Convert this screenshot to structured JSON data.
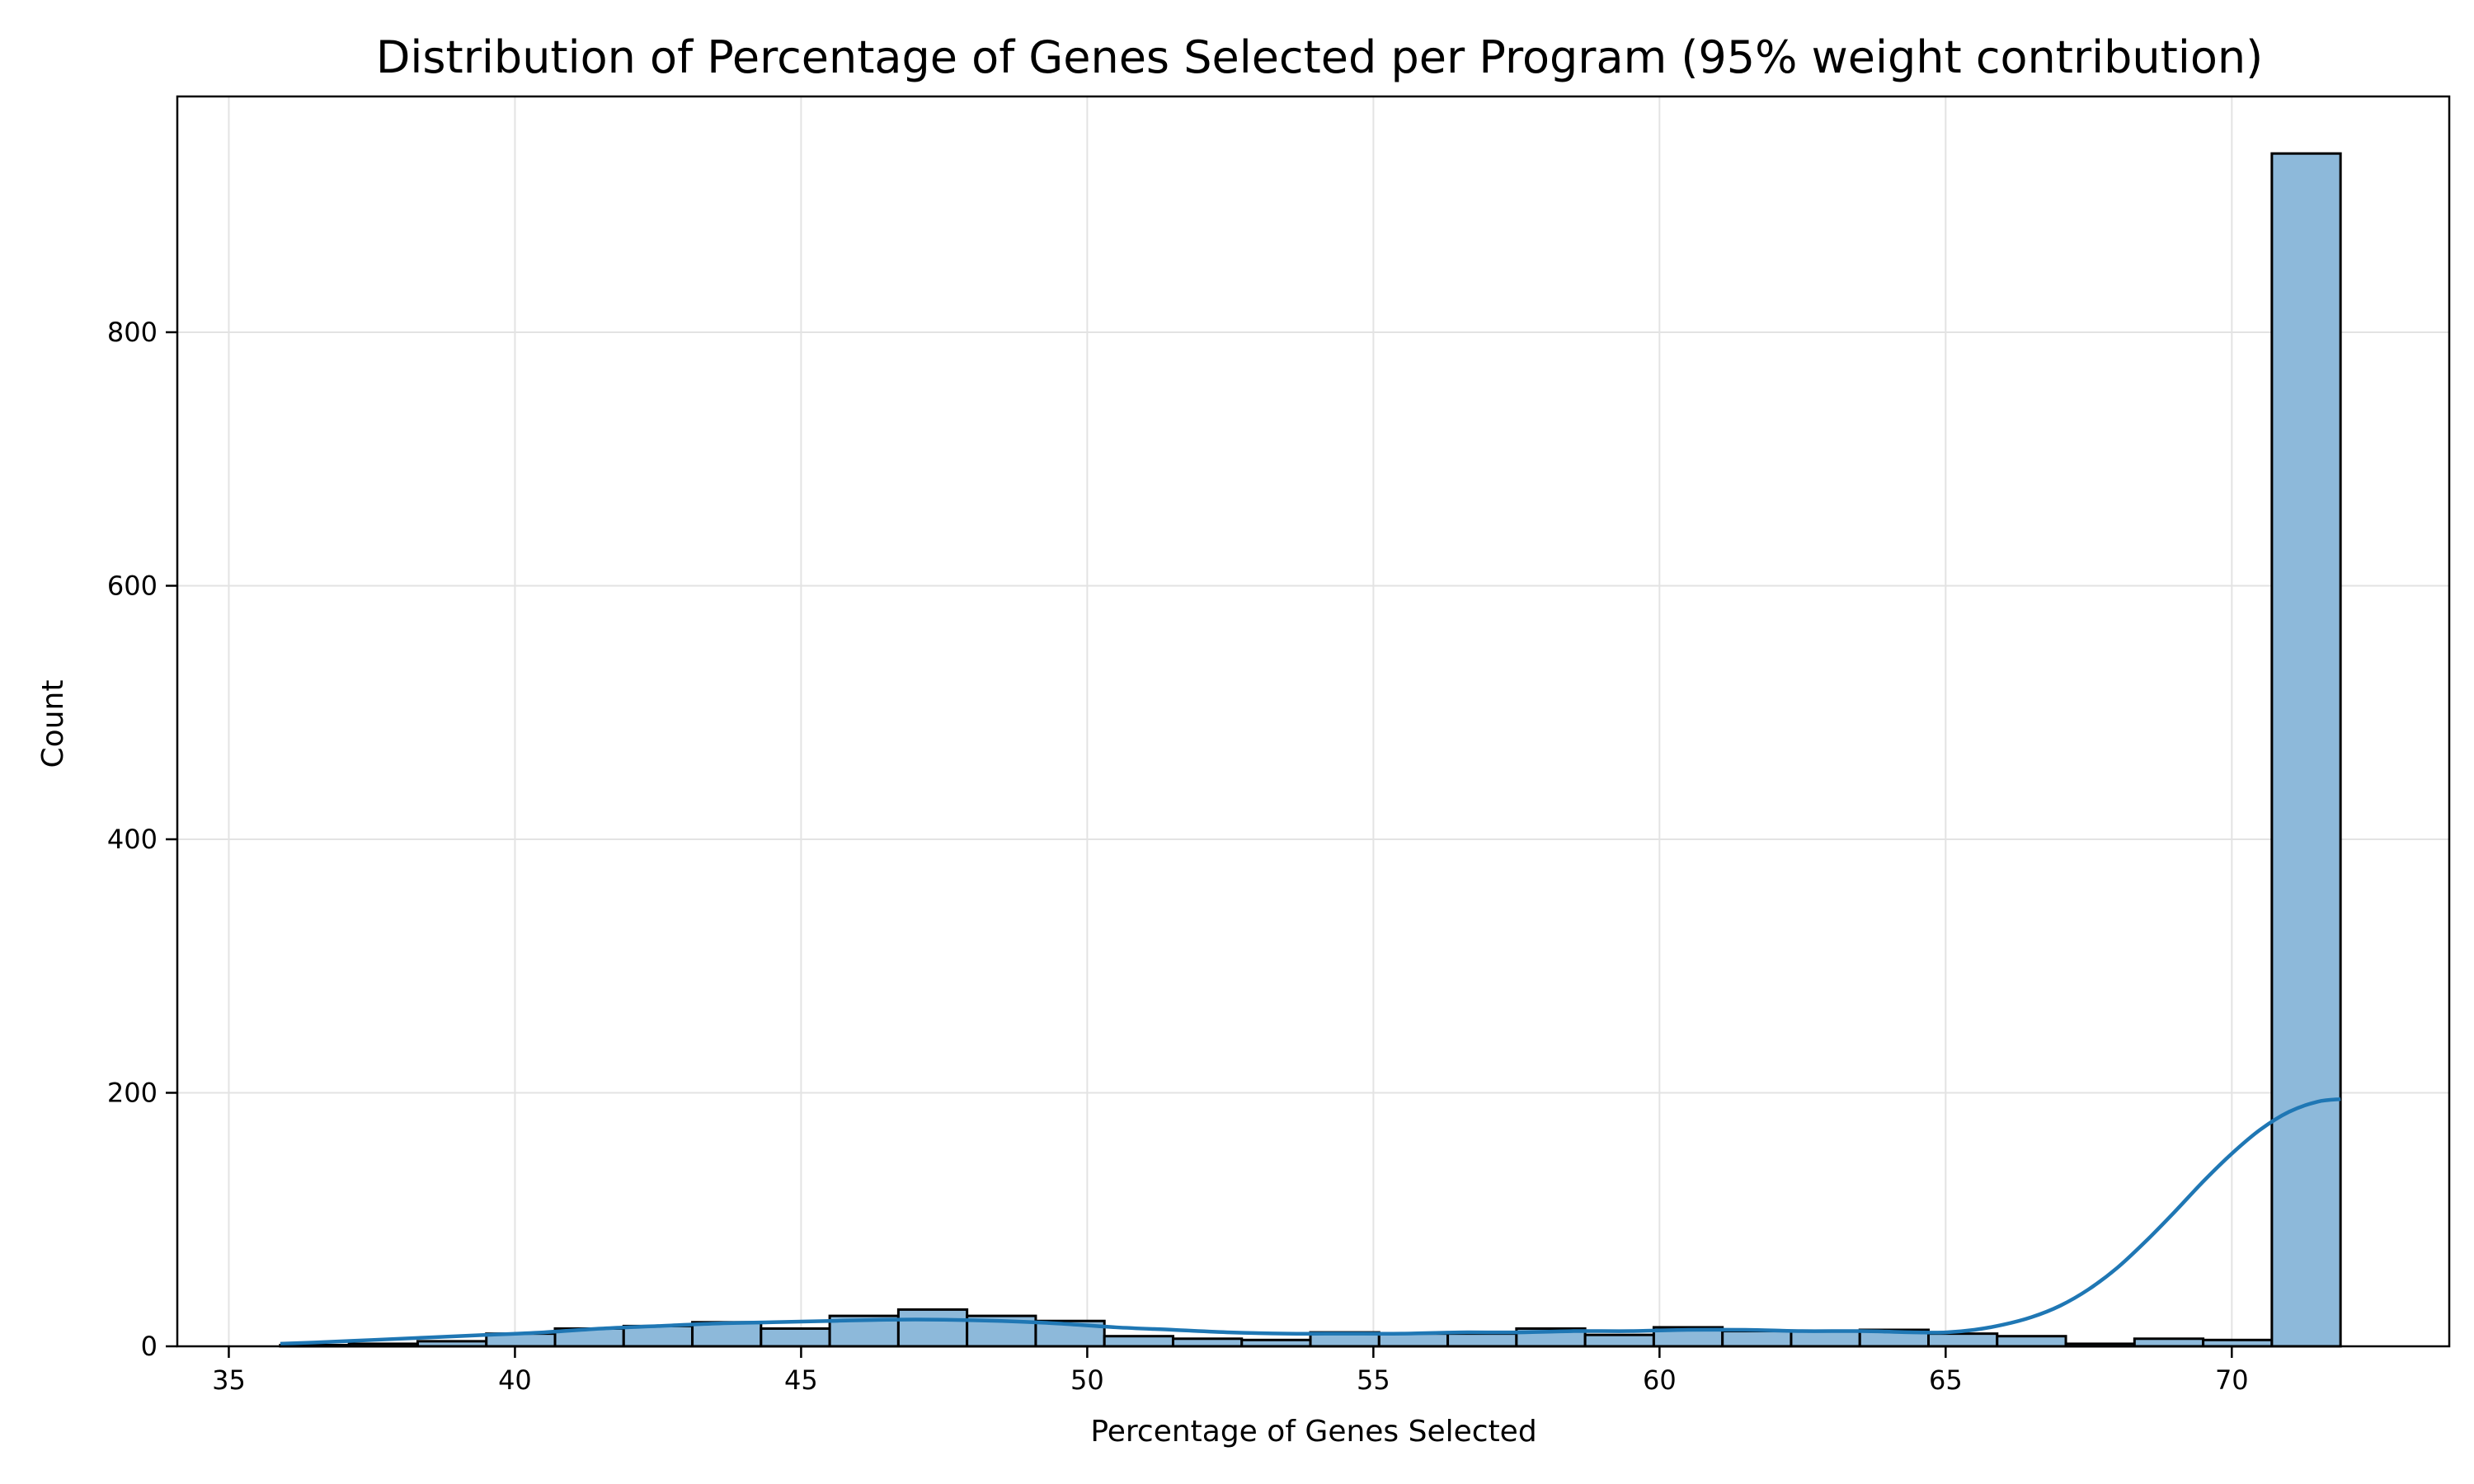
{
  "chart_data": {
    "type": "bar",
    "title": "Distribution of Percentage of Genes Selected per Program (95% weight contribution)",
    "xlabel": "Percentage of Genes Selected",
    "ylabel": "Count",
    "xlim": [
      34.1,
      73.8
    ],
    "ylim": [
      0,
      986
    ],
    "x_ticks": [
      35,
      40,
      45,
      50,
      55,
      60,
      65,
      70
    ],
    "y_ticks": [
      0,
      200,
      400,
      600,
      800
    ],
    "grid": true,
    "bar_color": "#8db9da",
    "bar_edge_color": "#000000",
    "kde_color": "#1f77b4",
    "bins": [
      {
        "x0": 35.9,
        "x1": 37.1,
        "count": 1
      },
      {
        "x0": 37.1,
        "x1": 38.3,
        "count": 2
      },
      {
        "x0": 38.3,
        "x1": 39.5,
        "count": 4
      },
      {
        "x0": 39.5,
        "x1": 40.7,
        "count": 10
      },
      {
        "x0": 40.7,
        "x1": 41.9,
        "count": 14
      },
      {
        "x0": 41.9,
        "x1": 43.1,
        "count": 16
      },
      {
        "x0": 43.1,
        "x1": 44.3,
        "count": 19
      },
      {
        "x0": 44.3,
        "x1": 45.5,
        "count": 14
      },
      {
        "x0": 45.5,
        "x1": 46.7,
        "count": 24
      },
      {
        "x0": 46.7,
        "x1": 47.9,
        "count": 29
      },
      {
        "x0": 47.9,
        "x1": 49.1,
        "count": 24
      },
      {
        "x0": 49.1,
        "x1": 50.3,
        "count": 20
      },
      {
        "x0": 50.3,
        "x1": 51.5,
        "count": 8
      },
      {
        "x0": 51.5,
        "x1": 52.7,
        "count": 6
      },
      {
        "x0": 52.7,
        "x1": 53.9,
        "count": 5
      },
      {
        "x0": 53.9,
        "x1": 55.1,
        "count": 11
      },
      {
        "x0": 55.1,
        "x1": 56.3,
        "count": 10
      },
      {
        "x0": 56.3,
        "x1": 57.5,
        "count": 10
      },
      {
        "x0": 57.5,
        "x1": 58.7,
        "count": 14
      },
      {
        "x0": 58.7,
        "x1": 59.9,
        "count": 9
      },
      {
        "x0": 59.9,
        "x1": 61.1,
        "count": 15
      },
      {
        "x0": 61.1,
        "x1": 62.3,
        "count": 12
      },
      {
        "x0": 62.3,
        "x1": 63.5,
        "count": 12
      },
      {
        "x0": 63.5,
        "x1": 64.7,
        "count": 13
      },
      {
        "x0": 64.7,
        "x1": 65.9,
        "count": 10
      },
      {
        "x0": 65.9,
        "x1": 67.1,
        "count": 8
      },
      {
        "x0": 67.1,
        "x1": 68.3,
        "count": 2
      },
      {
        "x0": 68.3,
        "x1": 69.5,
        "count": 6
      },
      {
        "x0": 69.5,
        "x1": 70.7,
        "count": 5
      },
      {
        "x0": 70.7,
        "x1": 71.9,
        "count": 941
      }
    ],
    "kde": {
      "x": [
        35.9,
        36.5,
        37.5,
        38.5,
        39.5,
        40.5,
        41.5,
        42.5,
        43.5,
        44.5,
        45.5,
        46.5,
        47.5,
        48.5,
        49.5,
        50.5,
        51.5,
        52.5,
        53.5,
        54.5,
        55.5,
        56.5,
        57.5,
        58.5,
        59.5,
        60.5,
        61.5,
        62.5,
        63.5,
        64.5,
        65.0,
        65.5,
        66.0,
        66.5,
        67.0,
        67.5,
        68.0,
        68.5,
        69.0,
        69.5,
        70.0,
        70.5,
        71.0,
        71.5,
        71.9
      ],
      "y": [
        2,
        3,
        5,
        7,
        9,
        11,
        14,
        16,
        18,
        19,
        20,
        21,
        21,
        20,
        18,
        15,
        13,
        11,
        10,
        10,
        10,
        11,
        11,
        12,
        12,
        13,
        13,
        12,
        12,
        11,
        11,
        13,
        17,
        23,
        32,
        45,
        62,
        83,
        106,
        130,
        152,
        171,
        185,
        193,
        195
      ]
    }
  }
}
